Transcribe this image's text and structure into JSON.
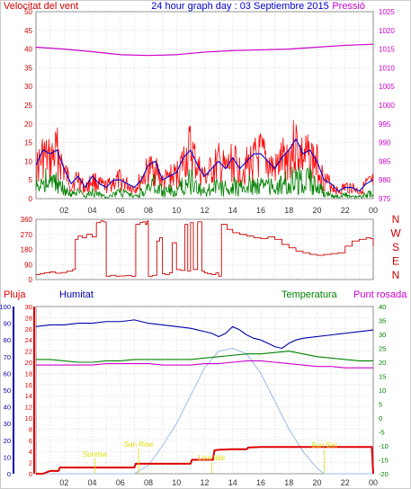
{
  "header": {
    "left_title": "Velocitat del vent",
    "center_title": "24 hour graph day : 03 Septiembre 2015",
    "right_title": "Pressió"
  },
  "colors": {
    "frame": "#8a8a8a",
    "grid": "#c8c8c8",
    "wind_left_axis": "#cc0000",
    "pressure_axis": "#cc00cc",
    "center_title": "#0000cc",
    "wind_gust": "#ff0000",
    "wind_avg": "#0000cc",
    "wind_base": "#008000",
    "wind_dir": "#cc0000",
    "dir_letters": "#cc0000",
    "rain": "#dd0000",
    "humidity": "#0000aa",
    "temperature": "#008000",
    "dewpoint": "#cc00cc",
    "solar": "#99bbee",
    "sun_labels": "#dddd00"
  },
  "x_ticks": [
    "02",
    "04",
    "06",
    "08",
    "10",
    "12",
    "14",
    "16",
    "18",
    "20",
    "22",
    "00"
  ],
  "chart_data": [
    {
      "type": "line",
      "panel": "wind_pressure",
      "x_unit": "hours",
      "x_range": [
        0,
        24
      ],
      "y_left": {
        "label": "Velocitat del vent",
        "range": [
          0,
          50
        ],
        "ticks": [
          "0",
          "5",
          "10",
          "15",
          "20",
          "25",
          "30",
          "35",
          "40",
          "45",
          "50"
        ]
      },
      "y_right": {
        "label": "Pressió",
        "range": [
          975,
          1025
        ],
        "ticks": [
          "975",
          "980",
          "985",
          "990",
          "995",
          "1000",
          "1005",
          "1010",
          "1015",
          "1020",
          "1025"
        ]
      },
      "grid": true,
      "series": [
        {
          "key": "gust",
          "axis": "left",
          "x": [
            0,
            0.5,
            1,
            1.5,
            2,
            2.5,
            3,
            3.5,
            4,
            4.5,
            5,
            5.5,
            6,
            6.5,
            7,
            7.5,
            8,
            8.5,
            9,
            9.5,
            10,
            10.5,
            11,
            11.5,
            12,
            12.5,
            13,
            13.5,
            14,
            14.5,
            15,
            15.5,
            16,
            16.5,
            17,
            17.5,
            18,
            18.5,
            19,
            19.5,
            20,
            20.5,
            21,
            21.5,
            22,
            22.5,
            23,
            23.5,
            24
          ],
          "values": [
            12,
            18,
            16,
            20,
            12,
            6,
            9,
            4,
            8,
            6,
            5,
            7,
            8,
            6,
            4,
            8,
            12,
            13,
            7,
            9,
            10,
            16,
            21,
            13,
            9,
            12,
            15,
            12,
            16,
            12,
            14,
            16,
            18,
            15,
            12,
            16,
            19,
            23,
            17,
            18,
            15,
            8,
            6,
            3,
            5,
            5,
            3,
            6,
            7
          ]
        },
        {
          "key": "average",
          "axis": "left",
          "x": [
            0,
            0.5,
            1,
            1.5,
            2,
            2.5,
            3,
            3.5,
            4,
            4.5,
            5,
            5.5,
            6,
            6.5,
            7,
            7.5,
            8,
            8.5,
            9,
            9.5,
            10,
            10.5,
            11,
            11.5,
            12,
            12.5,
            13,
            13.5,
            14,
            14.5,
            15,
            15.5,
            16,
            16.5,
            17,
            17.5,
            18,
            18.5,
            19,
            19.5,
            20,
            20.5,
            21,
            21.5,
            22,
            22.5,
            23,
            23.5,
            24
          ],
          "values": [
            9,
            13,
            12,
            13,
            8,
            4,
            6,
            3,
            6,
            4,
            3,
            5,
            5,
            4,
            3,
            5,
            9,
            10,
            5,
            6,
            7,
            11,
            13,
            9,
            6,
            8,
            10,
            8,
            11,
            8,
            10,
            12,
            12,
            10,
            8,
            11,
            13,
            16,
            12,
            13,
            10,
            5,
            4,
            2,
            3,
            3,
            2,
            4,
            5
          ]
        },
        {
          "key": "low",
          "axis": "left",
          "x": [
            0,
            0.5,
            1,
            1.5,
            2,
            2.5,
            3,
            3.5,
            4,
            4.5,
            5,
            5.5,
            6,
            6.5,
            7,
            7.5,
            8,
            8.5,
            9,
            9.5,
            10,
            10.5,
            11,
            11.5,
            12,
            12.5,
            13,
            13.5,
            14,
            14.5,
            15,
            15.5,
            16,
            16.5,
            17,
            17.5,
            18,
            18.5,
            19,
            19.5,
            20,
            20.5,
            21,
            21.5,
            22,
            22.5,
            23,
            23.5,
            24
          ],
          "values": [
            5,
            9,
            8,
            8,
            4,
            2,
            3,
            1,
            3,
            2,
            1,
            2,
            3,
            2,
            1,
            3,
            6,
            7,
            3,
            4,
            3,
            7,
            9,
            5,
            3,
            5,
            6,
            5,
            7,
            5,
            6,
            8,
            7,
            6,
            5,
            7,
            8,
            10,
            8,
            9,
            6,
            3,
            2,
            1,
            2,
            1,
            1,
            2,
            3
          ]
        },
        {
          "key": "pressure",
          "axis": "right",
          "x": [
            0,
            2,
            4,
            6,
            8,
            10,
            12,
            14,
            16,
            18,
            20,
            22,
            24
          ],
          "values": [
            1015.5,
            1015.0,
            1014.3,
            1013.5,
            1013.3,
            1013.5,
            1014.2,
            1014.6,
            1014.8,
            1015.0,
            1015.5,
            1016.0,
            1016.3
          ]
        }
      ]
    },
    {
      "type": "line",
      "panel": "wind_direction",
      "x_unit": "hours",
      "x_range": [
        0,
        24
      ],
      "y_left": {
        "range": [
          0,
          360
        ],
        "ticks": [
          "0",
          "90",
          "180",
          "270",
          "360"
        ]
      },
      "y_right_letters": [
        "N",
        "W",
        "S",
        "E",
        "N"
      ],
      "grid": true,
      "series": [
        {
          "key": "direction",
          "x": [
            0,
            0.3,
            0.6,
            1,
            1.4,
            1.8,
            2.2,
            2.6,
            2.8,
            3,
            3.3,
            3.6,
            4,
            4.3,
            4.6,
            4.8,
            5,
            5.3,
            5.7,
            6,
            6.4,
            6.8,
            7,
            7.1,
            7.4,
            7.6,
            7.8,
            7.9,
            8,
            8.3,
            8.6,
            8.8,
            9,
            9.2,
            9.5,
            9.7,
            10,
            10.3,
            10.6,
            10.8,
            11,
            11.2,
            11.5,
            11.8,
            12,
            12.2,
            12.5,
            12.8,
            13,
            13.2,
            13.4,
            13.6,
            14,
            14.5,
            15,
            15.5,
            16,
            16.5,
            17,
            17.5,
            18,
            18.5,
            19,
            19.5,
            20,
            20.5,
            21,
            21.5,
            22,
            22.5,
            23,
            23.5,
            23.8,
            24
          ],
          "values": [
            30,
            35,
            40,
            45,
            38,
            42,
            50,
            60,
            240,
            260,
            250,
            270,
            255,
            340,
            350,
            345,
            20,
            25,
            20,
            22,
            24,
            20,
            20,
            330,
            340,
            345,
            330,
            350,
            20,
            25,
            230,
            250,
            35,
            30,
            40,
            220,
            60,
            55,
            330,
            50,
            340,
            60,
            345,
            50,
            40,
            35,
            30,
            40,
            20,
            330,
            330,
            300,
            280,
            270,
            260,
            250,
            245,
            255,
            240,
            210,
            190,
            170,
            160,
            150,
            145,
            150,
            155,
            160,
            200,
            230,
            240,
            250,
            245,
            200
          ]
        }
      ]
    },
    {
      "type": "line",
      "panel": "temp_hum_rain",
      "x_unit": "hours",
      "x_range": [
        0,
        24
      ],
      "y_left_humidity": {
        "range": [
          0,
          100
        ],
        "ticks": [
          "0",
          "10",
          "20",
          "30",
          "40",
          "50",
          "60",
          "70",
          "80",
          "90",
          "100"
        ]
      },
      "y_left_rain": {
        "range": [
          0,
          30
        ],
        "ticks": [
          "0",
          "2",
          "4",
          "6",
          "8",
          "10",
          "12",
          "14",
          "16",
          "18",
          "20",
          "22",
          "24",
          "26",
          "28",
          "30"
        ]
      },
      "y_right_temperature": {
        "range": [
          -20,
          40
        ],
        "ticks": [
          "-20",
          "-15",
          "-10",
          "-5",
          "0",
          "5",
          "10",
          "15",
          "20",
          "25",
          "30",
          "35",
          "40"
        ]
      },
      "legend": [
        "Pluja",
        "Humitat",
        "Temperatura",
        "Punt rosada"
      ],
      "grid": true,
      "series": [
        {
          "key": "humidity",
          "name": "Humitat",
          "axis": "humidity",
          "x": [
            0,
            1,
            2,
            3,
            4,
            5,
            6,
            7,
            8,
            9,
            10,
            11,
            12,
            12.5,
            13,
            13.5,
            14,
            14.5,
            15,
            15.5,
            16,
            16.5,
            17,
            17.5,
            18,
            18.5,
            19,
            20,
            21,
            22,
            23,
            24
          ],
          "values": [
            88,
            89,
            89,
            90,
            90,
            91,
            91,
            92,
            90,
            89,
            88,
            87,
            85,
            84,
            82,
            84,
            88,
            86,
            83,
            81,
            80,
            78,
            76,
            75,
            78,
            80,
            81,
            82,
            83,
            84,
            85,
            86
          ]
        },
        {
          "key": "temperature",
          "name": "Temperatura",
          "axis": "temperature",
          "x": [
            0,
            1,
            2,
            3,
            4,
            5,
            6,
            7,
            8,
            9,
            10,
            11,
            12,
            13,
            14,
            15,
            16,
            17,
            18,
            19,
            20,
            21,
            22,
            23,
            24
          ],
          "values": [
            21,
            21,
            20.5,
            20,
            20,
            20.5,
            20.5,
            21,
            21,
            21,
            21,
            21,
            21.5,
            22,
            22.5,
            23,
            23,
            23.5,
            24,
            23,
            22,
            21.5,
            21,
            20.5,
            20.5
          ]
        },
        {
          "key": "dewpoint",
          "name": "Punt rosada",
          "axis": "temperature",
          "x": [
            0,
            1,
            2,
            3,
            4,
            5,
            6,
            7,
            8,
            9,
            10,
            11,
            12,
            13,
            14,
            15,
            16,
            17,
            18,
            19,
            20,
            21,
            22,
            23,
            24
          ],
          "values": [
            19,
            19,
            19,
            19,
            19,
            19.5,
            19.5,
            19.5,
            19.5,
            19,
            19,
            19,
            19.5,
            19.5,
            20,
            20.5,
            20.5,
            20,
            19.5,
            19,
            18.5,
            18.5,
            18,
            18,
            18
          ]
        },
        {
          "key": "rain",
          "name": "Pluja",
          "axis": "rain",
          "x": [
            0,
            0.5,
            1,
            1.6,
            1.7,
            3,
            4,
            5,
            6,
            7,
            7.1,
            8,
            9,
            10,
            11,
            11.1,
            12,
            12.6,
            12.7,
            13,
            14,
            15,
            15.1,
            16,
            18,
            20,
            22,
            23.9,
            24
          ],
          "values": [
            0,
            0,
            0.5,
            0.5,
            1.1,
            1.1,
            1.1,
            1.1,
            1.1,
            1.1,
            1.8,
            1.8,
            1.8,
            1.8,
            1.8,
            2.5,
            2.5,
            2.5,
            4.2,
            4.3,
            4.4,
            4.4,
            4.7,
            4.8,
            4.8,
            4.8,
            4.8,
            4.8,
            0
          ]
        },
        {
          "key": "solar",
          "axis": "temperature",
          "x": [
            0,
            7,
            8,
            9,
            10,
            11,
            12,
            13,
            14,
            15,
            16,
            17,
            18,
            19,
            20,
            20.5,
            24
          ],
          "values": [
            -20,
            -20,
            -17,
            -10,
            -2,
            8,
            18,
            24,
            25,
            23,
            16,
            6,
            -4,
            -12,
            -18,
            -20,
            -20
          ]
        }
      ],
      "annotations": [
        {
          "text": "Sun Rise",
          "x": 7.3
        },
        {
          "text": "Sun Set",
          "x": 20.5
        },
        {
          "text": "Sunrise",
          "x": 4.2
        },
        {
          "text": "Low tide",
          "x": 12.5
        }
      ]
    }
  ]
}
